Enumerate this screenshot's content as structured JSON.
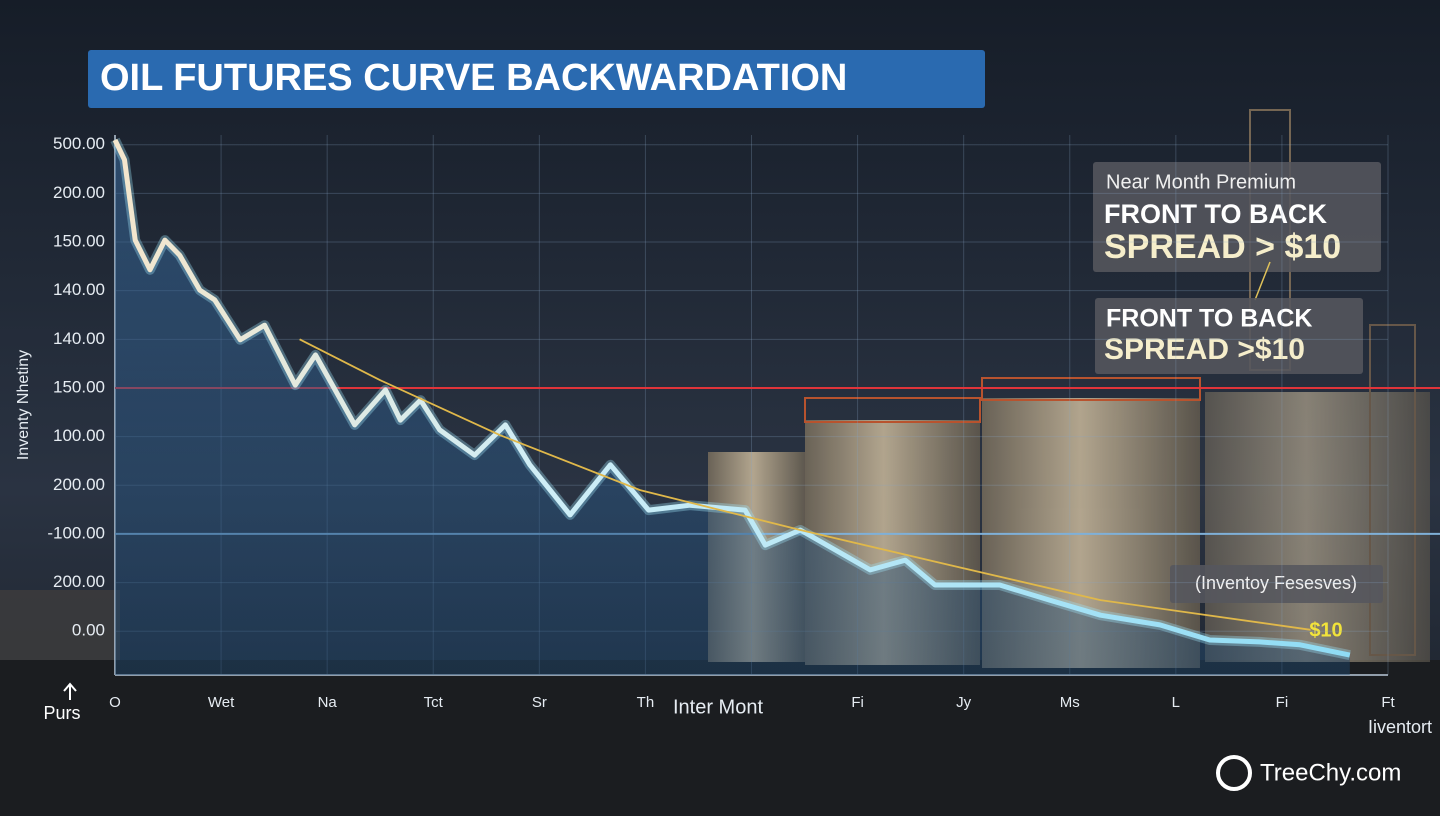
{
  "chart_data": {
    "type": "line",
    "title": "OIL FUTURES CURVE BACKWARDATION",
    "y_label": "Inventy Nhetiny",
    "x_label": "Inter Mont",
    "categories": [
      "O",
      "Wet",
      "Na",
      "Tct",
      "Sr",
      "Th",
      null,
      "Fi",
      "Jy",
      "Ms",
      "L",
      "Fi",
      "Ft"
    ],
    "xlim": [
      0,
      12
    ],
    "ylim": [
      -0.9,
      10.2
    ],
    "yticks": [
      {
        "value": 10,
        "label": "500.00"
      },
      {
        "value": 9,
        "label": "200.00"
      },
      {
        "value": 8,
        "label": "150.00"
      },
      {
        "value": 7,
        "label": "140.00"
      },
      {
        "value": 6,
        "label": "140.00"
      },
      {
        "value": 5,
        "label": "150.00"
      },
      {
        "value": 4,
        "label": "100.00"
      },
      {
        "value": 3,
        "label": "200.00"
      },
      {
        "value": 2,
        "label": "-100.00"
      },
      {
        "value": 1,
        "label": "200.00"
      },
      {
        "value": 0,
        "label": "0.00"
      }
    ],
    "grid": true,
    "series": [
      {
        "color": "#9fe3f5",
        "x": [
          0,
          0.09,
          0.19,
          0.33,
          0.47,
          0.61,
          0.8,
          0.94,
          1.18,
          1.41,
          1.7,
          1.89,
          2.26,
          2.55,
          2.69,
          2.88,
          3.06,
          3.39,
          3.68,
          3.91,
          4.29,
          4.67,
          5.03,
          5.42,
          5.94,
          6.13,
          6.46,
          7.12,
          7.45,
          7.73,
          8.34,
          8.81,
          9.29,
          9.85,
          10.32,
          10.79,
          11.17,
          11.64
        ],
        "values": [
          10.1,
          9.69,
          8.04,
          7.43,
          8.04,
          7.73,
          7.01,
          6.81,
          5.99,
          6.29,
          5.06,
          5.68,
          4.24,
          4.96,
          4.34,
          4.75,
          4.14,
          3.62,
          4.24,
          3.42,
          2.39,
          3.42,
          2.49,
          2.59,
          2.49,
          1.77,
          2.08,
          1.26,
          1.46,
          0.95,
          0.95,
          0.64,
          0.33,
          0.13,
          -0.18,
          -0.22,
          -0.28,
          -0.49
        ]
      },
      {
        "color": "#e0b84a",
        "x": [
          1.74,
          2.5,
          3.63,
          4.95,
          6.46,
          7.87,
          9.29,
          11.27
        ],
        "values": [
          6.0,
          5.16,
          4.03,
          2.9,
          2.08,
          1.36,
          0.64,
          0.03
        ]
      }
    ],
    "hlines": [
      {
        "value": 5,
        "color": "#e0343a"
      },
      {
        "value": 2,
        "color": "#7fb0d8"
      }
    ],
    "annotations": {
      "premium_heading": "Near Month Premium",
      "premium_line1": "FRONT TO BACK",
      "premium_line2": "SPREAD > $10",
      "spread_line1": "FRONT TO BACK",
      "spread_line2": "SPREAD >$10",
      "inventory": "(Inventoy Fesesves)",
      "price": "$10",
      "bottom_left": "Purs",
      "bottom_right": "Iiventort",
      "watermark": "TreeChy.com"
    }
  }
}
